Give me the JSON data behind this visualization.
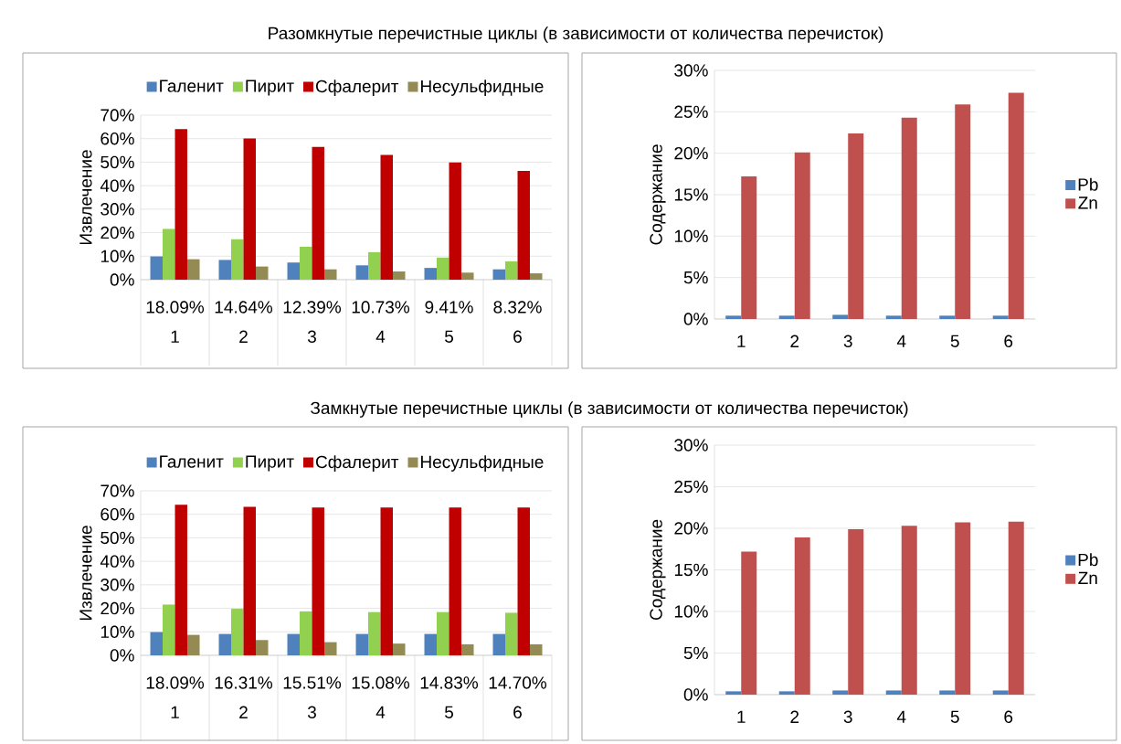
{
  "chart_data": [
    {
      "type": "bar",
      "title": "Разомкнутые перечистные циклы (в зависимости от количества перечисток)",
      "ylabel": "Извлечение",
      "categories": [
        "1",
        "2",
        "3",
        "4",
        "5",
        "6"
      ],
      "annotations": [
        "18.09%",
        "14.64%",
        "12.39%",
        "10.73%",
        "9.41%",
        "8.32%"
      ],
      "series": [
        {
          "name": "Галенит",
          "color": "#4f81bd",
          "values": [
            9.9,
            8.4,
            7.3,
            6.1,
            5.0,
            4.4
          ]
        },
        {
          "name": "Пирит",
          "color": "#92d050",
          "values": [
            21.6,
            17.2,
            14.0,
            11.7,
            9.4,
            7.8
          ]
        },
        {
          "name": "Сфалерит",
          "color": "#c00000",
          "values": [
            64.1,
            60.1,
            56.5,
            53.1,
            49.9,
            46.3
          ]
        },
        {
          "name": "Несульфидные",
          "color": "#948a54",
          "values": [
            8.7,
            5.6,
            4.4,
            3.5,
            3.0,
            2.7
          ]
        }
      ],
      "ylim": [
        0,
        70
      ],
      "yticks": [
        {
          "value": 0,
          "label": "0%"
        },
        {
          "value": 10,
          "label": "10%"
        },
        {
          "value": 20,
          "label": "20%"
        },
        {
          "value": 30,
          "label": "30%"
        },
        {
          "value": 40,
          "label": "40%"
        },
        {
          "value": 50,
          "label": "50%"
        },
        {
          "value": 60,
          "label": "60%"
        },
        {
          "value": 70,
          "label": "70%"
        }
      ],
      "grid": "y",
      "legend": "top"
    },
    {
      "type": "bar",
      "ylabel": "Содержание",
      "categories": [
        "1",
        "2",
        "3",
        "4",
        "5",
        "6"
      ],
      "series": [
        {
          "name": "Pb",
          "color": "#4f81bd",
          "values": [
            0.4,
            0.4,
            0.5,
            0.4,
            0.4,
            0.4
          ]
        },
        {
          "name": "Zn",
          "color": "#c0504d",
          "values": [
            17.2,
            20.1,
            22.4,
            24.3,
            25.9,
            27.3
          ]
        }
      ],
      "ylim": [
        0,
        30
      ],
      "yticks": [
        {
          "value": 0,
          "label": "0%"
        },
        {
          "value": 5,
          "label": "5%"
        },
        {
          "value": 10,
          "label": "10%"
        },
        {
          "value": 15,
          "label": "15%"
        },
        {
          "value": 20,
          "label": "20%"
        },
        {
          "value": 25,
          "label": "25%"
        },
        {
          "value": 30,
          "label": "30%"
        }
      ],
      "grid": "y",
      "legend": "right"
    },
    {
      "type": "bar",
      "title": "Замкнутые перечистные циклы (в зависимости от количества перечисток)",
      "ylabel": "Извлечение",
      "categories": [
        "1",
        "2",
        "3",
        "4",
        "5",
        "6"
      ],
      "annotations": [
        "18.09%",
        "16.31%",
        "15.51%",
        "15.08%",
        "14.83%",
        "14.70%"
      ],
      "series": [
        {
          "name": "Галенит",
          "color": "#4f81bd",
          "values": [
            9.9,
            9.1,
            9.1,
            9.1,
            9.1,
            9.1
          ]
        },
        {
          "name": "Пирит",
          "color": "#92d050",
          "values": [
            21.6,
            19.8,
            18.7,
            18.4,
            18.4,
            18.1
          ]
        },
        {
          "name": "Сфалерит",
          "color": "#c00000",
          "values": [
            64.1,
            63.2,
            62.9,
            62.9,
            62.9,
            62.9
          ]
        },
        {
          "name": "Несульфидные",
          "color": "#948a54",
          "values": [
            8.7,
            6.5,
            5.6,
            5.0,
            4.7,
            4.7
          ]
        }
      ],
      "ylim": [
        0,
        70
      ],
      "yticks": [
        {
          "value": 0,
          "label": "0%"
        },
        {
          "value": 10,
          "label": "10%"
        },
        {
          "value": 20,
          "label": "20%"
        },
        {
          "value": 30,
          "label": "30%"
        },
        {
          "value": 40,
          "label": "40%"
        },
        {
          "value": 50,
          "label": "50%"
        },
        {
          "value": 60,
          "label": "60%"
        },
        {
          "value": 70,
          "label": "70%"
        }
      ],
      "grid": "y",
      "legend": "top"
    },
    {
      "type": "bar",
      "ylabel": "Содержание",
      "categories": [
        "1",
        "2",
        "3",
        "4",
        "5",
        "6"
      ],
      "series": [
        {
          "name": "Pb",
          "color": "#4f81bd",
          "values": [
            0.4,
            0.4,
            0.5,
            0.5,
            0.5,
            0.5
          ]
        },
        {
          "name": "Zn",
          "color": "#c0504d",
          "values": [
            17.2,
            18.9,
            19.9,
            20.3,
            20.7,
            20.8
          ]
        }
      ],
      "ylim": [
        0,
        30
      ],
      "yticks": [
        {
          "value": 0,
          "label": "0%"
        },
        {
          "value": 5,
          "label": "5%"
        },
        {
          "value": 10,
          "label": "10%"
        },
        {
          "value": 15,
          "label": "15%"
        },
        {
          "value": 20,
          "label": "20%"
        },
        {
          "value": 25,
          "label": "25%"
        },
        {
          "value": 30,
          "label": "30%"
        }
      ],
      "grid": "y",
      "legend": "right"
    }
  ]
}
